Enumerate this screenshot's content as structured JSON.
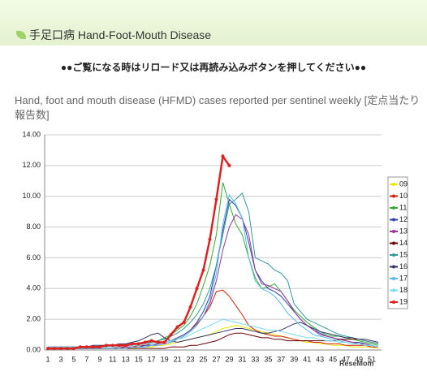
{
  "header": {
    "title": "手足口病 Hand-Foot-Mouth Disease"
  },
  "notice": "●●ご覧になる時はリロード又は再読み込みボタンを押してください●●",
  "watermark": "ReseMom",
  "chart_data": {
    "type": "line",
    "title": "Hand, foot and mouth disease (HFMD) cases reported per sentinel weekly [定点当たり報告数]",
    "categories": [
      1,
      null,
      3,
      null,
      5,
      null,
      7,
      null,
      9,
      null,
      11,
      null,
      13,
      null,
      15,
      null,
      17,
      null,
      19,
      null,
      21,
      null,
      23,
      null,
      25,
      null,
      27,
      null,
      29,
      null,
      31,
      null,
      33,
      null,
      35,
      null,
      37,
      null,
      39,
      null,
      41,
      null,
      43,
      null,
      45,
      null,
      47,
      null,
      49,
      null,
      51,
      null
    ],
    "ylim": [
      0,
      14
    ],
    "yticks": [
      {
        "value": 0,
        "label": "0.00"
      },
      {
        "value": 2,
        "label": "2.00"
      },
      {
        "value": 4,
        "label": "4.00"
      },
      {
        "value": 6,
        "label": "6.00"
      },
      {
        "value": 8,
        "label": "8.00"
      },
      {
        "value": 10,
        "label": "10.00"
      },
      {
        "value": 12,
        "label": "12.00"
      },
      {
        "value": 14,
        "label": "14.00"
      }
    ],
    "grid": true,
    "legend": "right",
    "series": [
      {
        "name": "09",
        "color": "#e8e800",
        "values": [
          0.1,
          0.1,
          0.1,
          0.1,
          0.1,
          0.1,
          0.1,
          0.1,
          0.1,
          0.1,
          0.1,
          0.1,
          0.1,
          0.1,
          0.2,
          0.2,
          0.2,
          0.3,
          0.3,
          0.4,
          0.5,
          0.6,
          0.7,
          0.8,
          0.9,
          1.0,
          1.2,
          1.4,
          1.5,
          1.6,
          1.5,
          1.4,
          1.3,
          1.2,
          1.1,
          1.0,
          0.9,
          0.8,
          0.7,
          0.6,
          0.5,
          0.5,
          0.4,
          0.4,
          0.3,
          0.3,
          0.3,
          0.2,
          0.2,
          0.2,
          0.2,
          0.1
        ]
      },
      {
        "name": "10",
        "color": "#cc2200",
        "values": [
          0.1,
          0.1,
          0.1,
          0.1,
          0.1,
          0.1,
          0.1,
          0.1,
          0.1,
          0.1,
          0.1,
          0.2,
          0.2,
          0.2,
          0.3,
          0.3,
          0.4,
          0.5,
          0.5,
          0.6,
          0.8,
          1.0,
          1.3,
          1.7,
          2.2,
          2.8,
          3.8,
          3.9,
          3.5,
          2.9,
          2.3,
          1.6,
          1.3,
          1.1,
          1.0,
          0.9,
          0.9,
          0.8,
          0.7,
          0.6,
          0.6,
          0.5,
          0.5,
          0.4,
          0.4,
          0.4,
          0.3,
          0.3,
          0.3,
          0.3,
          0.2,
          0.2
        ]
      },
      {
        "name": "11",
        "color": "#33aa33",
        "values": [
          0.2,
          0.2,
          0.2,
          0.2,
          0.2,
          0.2,
          0.2,
          0.2,
          0.2,
          0.2,
          0.3,
          0.3,
          0.3,
          0.3,
          0.4,
          0.4,
          0.5,
          0.6,
          0.8,
          1.0,
          1.3,
          1.6,
          2.2,
          3.0,
          4.2,
          5.5,
          7.5,
          10.9,
          9.5,
          8.2,
          7.5,
          6.0,
          4.7,
          4.0,
          4.1,
          4.3,
          3.8,
          3.2,
          2.6,
          2.2,
          1.8,
          1.5,
          1.2,
          1.0,
          0.9,
          0.9,
          0.8,
          0.7,
          0.6,
          0.5,
          0.4,
          0.3
        ]
      },
      {
        "name": "12",
        "color": "#3344aa",
        "values": [
          0.1,
          0.1,
          0.1,
          0.1,
          0.1,
          0.1,
          0.1,
          0.1,
          0.1,
          0.1,
          0.1,
          0.1,
          0.2,
          0.2,
          0.2,
          0.3,
          0.3,
          0.4,
          0.5,
          0.6,
          0.8,
          1.0,
          1.3,
          1.8,
          2.5,
          3.5,
          5.5,
          7.8,
          9.8,
          9.4,
          8.6,
          7.0,
          5.2,
          4.5,
          4.0,
          3.8,
          3.5,
          3.0,
          2.5,
          2.0,
          1.6,
          1.3,
          1.1,
          0.9,
          0.8,
          0.7,
          0.6,
          0.5,
          0.5,
          0.4,
          0.3,
          0.2
        ]
      },
      {
        "name": "13",
        "color": "#993399",
        "values": [
          0.1,
          0.1,
          0.1,
          0.1,
          0.1,
          0.1,
          0.1,
          0.1,
          0.1,
          0.1,
          0.1,
          0.1,
          0.2,
          0.2,
          0.2,
          0.2,
          0.3,
          0.3,
          0.4,
          0.5,
          0.7,
          0.9,
          1.2,
          1.6,
          2.2,
          3.0,
          4.5,
          6.5,
          8.0,
          8.8,
          8.5,
          7.5,
          5.2,
          4.3,
          4.2,
          4.0,
          3.8,
          3.2,
          2.5,
          2.0,
          1.6,
          1.3,
          1.0,
          0.9,
          0.8,
          0.7,
          0.6,
          0.5,
          0.4,
          0.4,
          0.3,
          0.2
        ]
      },
      {
        "name": "14",
        "color": "#660000",
        "values": [
          0.1,
          0.1,
          0.1,
          0.1,
          0.1,
          0.1,
          0.1,
          0.1,
          0.1,
          0.1,
          0.1,
          0.1,
          0.1,
          0.1,
          0.1,
          0.1,
          0.1,
          0.1,
          0.1,
          0.2,
          0.2,
          0.2,
          0.3,
          0.3,
          0.4,
          0.5,
          0.6,
          0.8,
          1.0,
          1.1,
          1.1,
          1.0,
          0.9,
          0.8,
          0.8,
          0.7,
          0.7,
          0.6,
          0.6,
          0.6,
          0.6,
          0.6,
          0.6,
          0.6,
          0.6,
          0.7,
          0.7,
          0.7,
          0.7,
          0.6,
          0.5,
          0.4
        ]
      },
      {
        "name": "15",
        "color": "#339999",
        "values": [
          0.2,
          0.2,
          0.2,
          0.2,
          0.2,
          0.2,
          0.2,
          0.2,
          0.2,
          0.2,
          0.3,
          0.3,
          0.3,
          0.3,
          0.4,
          0.4,
          0.5,
          0.6,
          0.7,
          0.9,
          1.1,
          1.4,
          1.8,
          2.3,
          3.0,
          4.0,
          5.5,
          7.5,
          9.5,
          9.8,
          10.2,
          9.0,
          6.0,
          5.8,
          5.6,
          5.2,
          5.0,
          4.5,
          3.0,
          2.5,
          2.0,
          1.8,
          1.6,
          1.4,
          1.2,
          1.0,
          0.9,
          0.8,
          0.7,
          0.6,
          0.5,
          0.4
        ]
      },
      {
        "name": "16",
        "color": "#333366",
        "values": [
          0.2,
          0.2,
          0.2,
          0.2,
          0.2,
          0.2,
          0.2,
          0.3,
          0.3,
          0.3,
          0.3,
          0.4,
          0.4,
          0.5,
          0.6,
          0.8,
          1.0,
          1.1,
          0.8,
          0.6,
          0.5,
          0.6,
          0.7,
          0.8,
          0.9,
          1.0,
          1.1,
          1.2,
          1.3,
          1.4,
          1.4,
          1.3,
          1.2,
          1.1,
          1.1,
          1.2,
          1.3,
          1.5,
          1.7,
          1.8,
          1.6,
          1.4,
          1.2,
          1.1,
          1.0,
          0.9,
          0.8,
          0.8,
          0.7,
          0.7,
          0.6,
          0.5
        ]
      },
      {
        "name": "17",
        "color": "#55bbee",
        "values": [
          0.1,
          0.1,
          0.1,
          0.1,
          0.1,
          0.1,
          0.1,
          0.1,
          0.1,
          0.1,
          0.1,
          0.1,
          0.1,
          0.2,
          0.2,
          0.2,
          0.3,
          0.3,
          0.4,
          0.5,
          0.7,
          0.9,
          1.2,
          1.6,
          2.2,
          3.2,
          5.0,
          8.2,
          10.1,
          9.5,
          8.6,
          6.0,
          4.5,
          4.0,
          3.8,
          3.5,
          3.0,
          2.4,
          2.0,
          1.6,
          1.3,
          1.0,
          0.9,
          0.8,
          0.7,
          0.6,
          0.5,
          0.4,
          0.4,
          0.3,
          0.3,
          0.2
        ]
      },
      {
        "name": "18",
        "color": "#77ddee",
        "values": [
          0.2,
          0.2,
          0.2,
          0.2,
          0.2,
          0.2,
          0.2,
          0.2,
          0.2,
          0.2,
          0.2,
          0.2,
          0.3,
          0.3,
          0.3,
          0.4,
          0.4,
          0.5,
          0.5,
          0.6,
          0.7,
          0.8,
          1.0,
          1.2,
          1.4,
          1.6,
          1.8,
          2.0,
          1.9,
          1.8,
          1.7,
          1.6,
          1.5,
          1.4,
          1.3,
          1.3,
          1.2,
          1.1,
          1.0,
          0.9,
          0.8,
          0.8,
          0.7,
          0.6,
          0.6,
          0.5,
          0.5,
          0.4,
          0.4,
          0.3,
          0.3,
          0.2
        ]
      },
      {
        "name": "19",
        "color": "#dd2222",
        "values": [
          0.1,
          0.1,
          0.1,
          0.1,
          0.1,
          0.2,
          0.2,
          0.2,
          0.2,
          0.3,
          0.3,
          0.3,
          0.3,
          0.4,
          0.4,
          0.5,
          0.6,
          0.5,
          0.5,
          1.0,
          1.5,
          1.8,
          2.8,
          4.0,
          5.2,
          7.2,
          9.8,
          12.6,
          12.0,
          null,
          null,
          null,
          null,
          null,
          null,
          null,
          null,
          null,
          null,
          null,
          null,
          null,
          null,
          null,
          null,
          null,
          null,
          null,
          null,
          null,
          null,
          null
        ]
      }
    ]
  }
}
